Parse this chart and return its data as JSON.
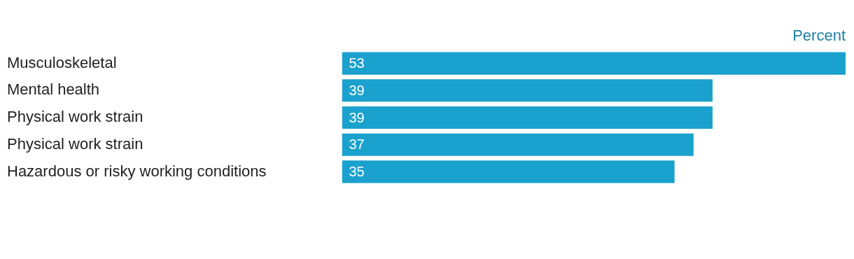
{
  "chart_data": {
    "type": "bar",
    "orientation": "horizontal",
    "xlabel": "Percent",
    "categories": [
      "Musculoskeletal",
      "Mental health",
      "Physical work strain",
      "Physical work strain",
      "Hazardous or risky working conditions"
    ],
    "values": [
      53,
      39,
      39,
      37,
      35
    ],
    "color": "#1aa1cd",
    "xlim": [
      0,
      53
    ],
    "tick_labels": "y",
    "data_labels": true,
    "legend": false
  }
}
